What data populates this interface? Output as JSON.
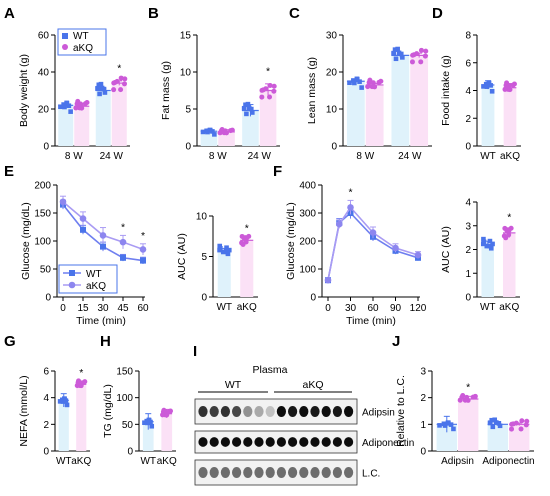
{
  "colors": {
    "wt_fill": "#dff2fb",
    "wt_point": "#4a74ea",
    "akq_fill": "#fbe1f6",
    "akq_point": "#cc5ad8",
    "line": "#8d86ef",
    "err": "#7a79e6"
  },
  "chart_data": [
    {
      "id": "A",
      "type": "bar",
      "panel_label": "A",
      "ylabel": "Body weight (g)",
      "categories": [
        "8 W",
        "24 W"
      ],
      "ylim": [
        0,
        60
      ],
      "yticks": [
        "0",
        "20",
        "40",
        "60"
      ],
      "legend": [
        "WT",
        "aKQ"
      ],
      "series": [
        {
          "name": "WT",
          "values": [
            22,
            30
          ],
          "sem": [
            0.6,
            1.0
          ]
        },
        {
          "name": "aKQ",
          "values": [
            21.5,
            34
          ],
          "sem": [
            0.5,
            1.2
          ]
        }
      ],
      "annotations": [
        "*"
      ]
    },
    {
      "id": "B",
      "type": "bar",
      "panel_label": "B",
      "ylabel": "Fat mass (g)",
      "categories": [
        "8 W",
        "24 W"
      ],
      "ylim": [
        0,
        15
      ],
      "yticks": [
        "0",
        "5",
        "10",
        "15"
      ],
      "series": [
        {
          "name": "WT",
          "values": [
            2,
            4.8
          ],
          "sem": [
            0.3,
            0.8
          ]
        },
        {
          "name": "aKQ",
          "values": [
            1.9,
            7.5
          ],
          "sem": [
            0.3,
            0.9
          ]
        }
      ],
      "annotations": [
        "*"
      ]
    },
    {
      "id": "C",
      "type": "bar",
      "panel_label": "C",
      "ylabel": "Lean mass (g)",
      "categories": [
        "8 W",
        "24 W"
      ],
      "ylim": [
        0,
        30
      ],
      "yticks": [
        "0",
        "10",
        "20",
        "30"
      ],
      "series": [
        {
          "name": "WT",
          "values": [
            17.5,
            24.5
          ],
          "sem": [
            0.4,
            0.6
          ]
        },
        {
          "name": "aKQ",
          "values": [
            16.5,
            24.5
          ],
          "sem": [
            0.4,
            0.6
          ]
        }
      ]
    },
    {
      "id": "D",
      "type": "bar",
      "panel_label": "D",
      "ylabel": "Food intake (g)",
      "categories": [
        "WT",
        "aKQ"
      ],
      "ylim": [
        0,
        8
      ],
      "yticks": [
        "0",
        "2",
        "4",
        "6",
        "8"
      ],
      "series": [
        {
          "name": "",
          "values": [
            4.4,
            4.2
          ],
          "sem": [
            0.3,
            0.3
          ]
        }
      ]
    },
    {
      "id": "E",
      "type": "line",
      "panel_label": "E",
      "ylabel": "Glucose (mg/dL)",
      "xlabel": "Time (min)",
      "x": [
        0,
        15,
        30,
        45,
        60
      ],
      "xticks": [
        "0",
        "15",
        "30",
        "45",
        "60"
      ],
      "ylim": [
        0,
        200
      ],
      "yticks": [
        "0",
        "50",
        "100",
        "150",
        "200"
      ],
      "legend": [
        "WT",
        "aKQ"
      ],
      "series": [
        {
          "name": "WT",
          "values": [
            165,
            120,
            90,
            70,
            65
          ],
          "sem": [
            8,
            8,
            8,
            6,
            6
          ]
        },
        {
          "name": "aKQ",
          "values": [
            170,
            140,
            110,
            98,
            85
          ],
          "sem": [
            10,
            12,
            14,
            12,
            10
          ]
        }
      ],
      "annotations": [
        "*",
        "*"
      ]
    },
    {
      "id": "E_AUC",
      "type": "bar",
      "panel_label": "",
      "ylabel": "AUC (AU)",
      "categories": [
        "WT",
        "aKQ"
      ],
      "ylim": [
        0,
        10
      ],
      "yticks": [
        "0",
        "5",
        "10"
      ],
      "series": [
        {
          "name": "",
          "values": [
            5.7,
            7.0
          ],
          "sem": [
            0.3,
            0.4
          ]
        }
      ],
      "annotations": [
        "*"
      ]
    },
    {
      "id": "F",
      "type": "line",
      "panel_label": "F",
      "ylabel": "Glucose (mg/dL)",
      "xlabel": "Time (min)",
      "x": [
        0,
        15,
        30,
        60,
        90,
        120
      ],
      "xticks": [
        "0",
        "30",
        "60",
        "90",
        "120"
      ],
      "ylim": [
        0,
        400
      ],
      "yticks": [
        "0",
        "100",
        "200",
        "300",
        "400"
      ],
      "series": [
        {
          "name": "WT",
          "values": [
            60,
            265,
            300,
            215,
            165,
            140
          ],
          "sem": [
            5,
            15,
            20,
            15,
            12,
            10
          ]
        },
        {
          "name": "aKQ",
          "values": [
            60,
            260,
            320,
            230,
            175,
            150
          ],
          "sem": [
            5,
            15,
            25,
            20,
            15,
            12
          ]
        }
      ],
      "annotations": [
        "*"
      ]
    },
    {
      "id": "F_AUC",
      "type": "bar",
      "panel_label": "",
      "ylabel": "AUC (AU)",
      "categories": [
        "WT",
        "aKQ"
      ],
      "ylim": [
        0,
        4
      ],
      "yticks": [
        "0",
        "1",
        "2",
        "3",
        "4"
      ],
      "series": [
        {
          "name": "",
          "values": [
            2.2,
            2.7
          ],
          "sem": [
            0.15,
            0.2
          ]
        }
      ],
      "annotations": [
        "*"
      ]
    },
    {
      "id": "G",
      "type": "bar",
      "panel_label": "G",
      "ylabel": "NEFA (mmol/L)",
      "categories": [
        "WT",
        "aKQ"
      ],
      "ylim": [
        0,
        6
      ],
      "yticks": [
        "0",
        "2",
        "4",
        "6"
      ],
      "series": [
        {
          "name": "",
          "values": [
            3.8,
            5.0
          ],
          "sem": [
            0.5,
            0.2
          ]
        }
      ],
      "annotations": [
        "*"
      ]
    },
    {
      "id": "H",
      "type": "bar",
      "panel_label": "H",
      "ylabel": "TG (mg/dL)",
      "categories": [
        "WT",
        "aKQ"
      ],
      "ylim": [
        0,
        150
      ],
      "yticks": [
        "0",
        "50",
        "100",
        "150"
      ],
      "series": [
        {
          "name": "",
          "values": [
            55,
            70
          ],
          "sem": [
            15,
            8
          ]
        }
      ]
    },
    {
      "id": "J",
      "type": "bar",
      "panel_label": "J",
      "ylabel": "Relative to L.C.",
      "categories": [
        "Adipsin",
        "Adiponectin"
      ],
      "ylim": [
        0,
        3
      ],
      "yticks": [
        "0",
        "1",
        "2",
        "3"
      ],
      "series": [
        {
          "name": "WT",
          "values": [
            1.0,
            1.0
          ],
          "sem": [
            0.3,
            0.05
          ]
        },
        {
          "name": "aKQ",
          "values": [
            1.95,
            1.0
          ],
          "sem": [
            0.1,
            0.05
          ]
        }
      ],
      "annotations": [
        "*"
      ]
    }
  ],
  "blot": {
    "panel_label": "I",
    "title": "Plasma",
    "groups": [
      "WT",
      "aKQ"
    ],
    "rows": [
      {
        "label": "Adipsin",
        "wt": [
          0.8,
          0.75,
          0.8,
          0.7,
          0.4,
          0.3,
          0.2
        ],
        "akq": [
          0.95,
          0.9,
          0.95,
          0.9,
          0.95,
          0.9,
          0.95
        ]
      },
      {
        "label": "Adiponectin",
        "wt": [
          0.95,
          0.95,
          0.95,
          0.95,
          0.95,
          0.95,
          0.95
        ],
        "akq": [
          0.95,
          0.95,
          0.95,
          0.95,
          0.95,
          0.95,
          0.95
        ]
      },
      {
        "label": "L.C.",
        "wt": [
          0.55,
          0.55,
          0.55,
          0.55,
          0.55,
          0.55,
          0.55
        ],
        "akq": [
          0.55,
          0.55,
          0.55,
          0.55,
          0.55,
          0.55,
          0.55
        ]
      }
    ]
  }
}
